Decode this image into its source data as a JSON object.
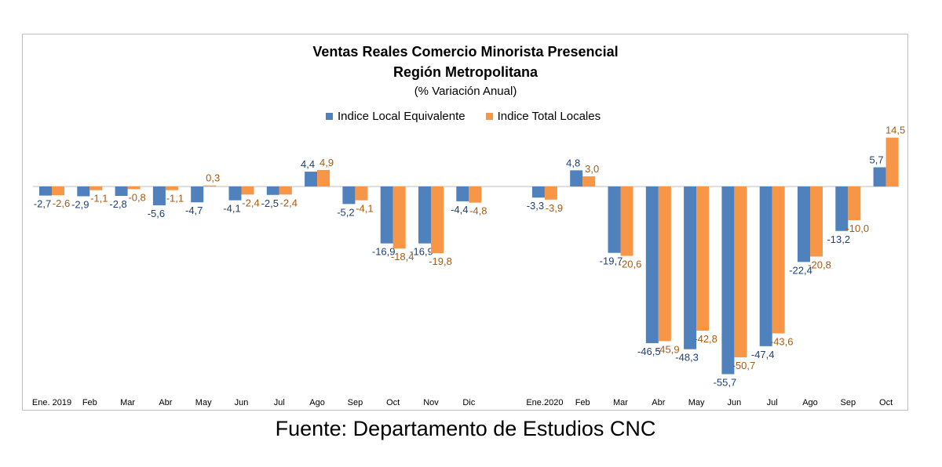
{
  "chart_data": {
    "type": "bar",
    "title": "Ventas Reales Comercio Minorista Presencial",
    "title2": "Región Metropolitana",
    "subtitle": "(% Variación Anual)",
    "categories": [
      "Ene. 2019",
      "Feb",
      "Mar",
      "Abr",
      "May",
      "Jun",
      "Jul",
      "Ago",
      "Sep",
      "Oct",
      "Nov",
      "Dic",
      "",
      "Ene.2020",
      "Feb",
      "Mar",
      "Abr",
      "May",
      "Jun",
      "Jul",
      "Ago",
      "Sep",
      "Oct"
    ],
    "series": [
      {
        "name": "Indice Local Equivalente",
        "color": "#4f81bd",
        "label_color": "#1f3f77",
        "values": [
          -2.7,
          -2.9,
          -2.8,
          -5.6,
          -4.7,
          -4.1,
          -2.5,
          4.4,
          -5.2,
          -16.9,
          -16.9,
          -4.4,
          null,
          -3.3,
          4.8,
          -19.7,
          -46.5,
          -48.3,
          -55.7,
          -47.4,
          -22.4,
          -13.2,
          5.7
        ]
      },
      {
        "name": "Indice Total Locales",
        "color": "#f79646",
        "label_color": "#a85a12",
        "values": [
          -2.6,
          -1.1,
          -0.8,
          -1.1,
          0.3,
          -2.4,
          -2.4,
          4.9,
          -4.1,
          -18.4,
          -19.8,
          -4.8,
          null,
          -3.9,
          3.0,
          -20.6,
          -45.9,
          -42.8,
          -50.7,
          -43.6,
          -20.8,
          -10.0,
          14.5
        ]
      }
    ],
    "legend_position": "top-center",
    "grid": false
  },
  "source": "Fuente: Departamento de Estudios CNC"
}
